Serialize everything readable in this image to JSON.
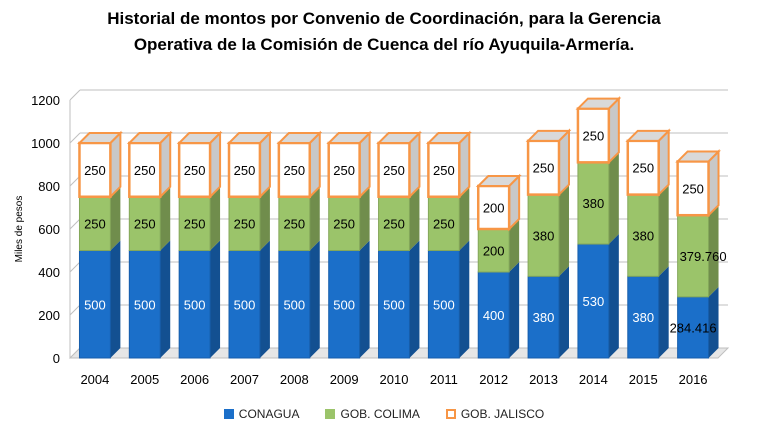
{
  "chart_data": {
    "type": "bar",
    "stacked": true,
    "title_line1": "Historial de montos por Convenio de Coordinación, para la Gerencia",
    "title_line2": "Operativa de la Comisión de Cuenca del río Ayuquila-Armería.",
    "ylabel": "Miles de pesos",
    "xlabel": "",
    "ylim": [
      0,
      1200
    ],
    "yticks": [
      0,
      200,
      400,
      600,
      800,
      1000,
      1200
    ],
    "grid": true,
    "legend_position": "bottom",
    "categories": [
      "2004",
      "2005",
      "2006",
      "2007",
      "2008",
      "2009",
      "2010",
      "2011",
      "2012",
      "2013",
      "2014",
      "2015",
      "2016"
    ],
    "series": [
      {
        "name": "CONAGUA",
        "color": "#1b6fc9",
        "values": [
          500,
          500,
          500,
          500,
          500,
          500,
          500,
          500,
          400,
          380,
          530,
          380,
          284.416
        ],
        "labels": [
          "500",
          "500",
          "500",
          "500",
          "500",
          "500",
          "500",
          "500",
          "400",
          "380",
          "530",
          "380",
          "284.416"
        ]
      },
      {
        "name": "GOB. COLIMA",
        "color": "#9bc46a",
        "values": [
          250,
          250,
          250,
          250,
          250,
          250,
          250,
          250,
          200,
          380,
          380,
          380,
          379.76
        ],
        "labels": [
          "250",
          "250",
          "250",
          "250",
          "250",
          "250",
          "250",
          "250",
          "200",
          "380",
          "380",
          "380",
          "379.760"
        ]
      },
      {
        "name": "GOB. JALISCO",
        "color": "#ffffff",
        "border": "#f79646",
        "values": [
          250,
          250,
          250,
          250,
          250,
          250,
          250,
          250,
          200,
          250,
          250,
          250,
          250
        ],
        "labels": [
          "250",
          "250",
          "250",
          "250",
          "250",
          "250",
          "250",
          "250",
          "200",
          "250",
          "250",
          "250",
          "250"
        ]
      }
    ]
  }
}
